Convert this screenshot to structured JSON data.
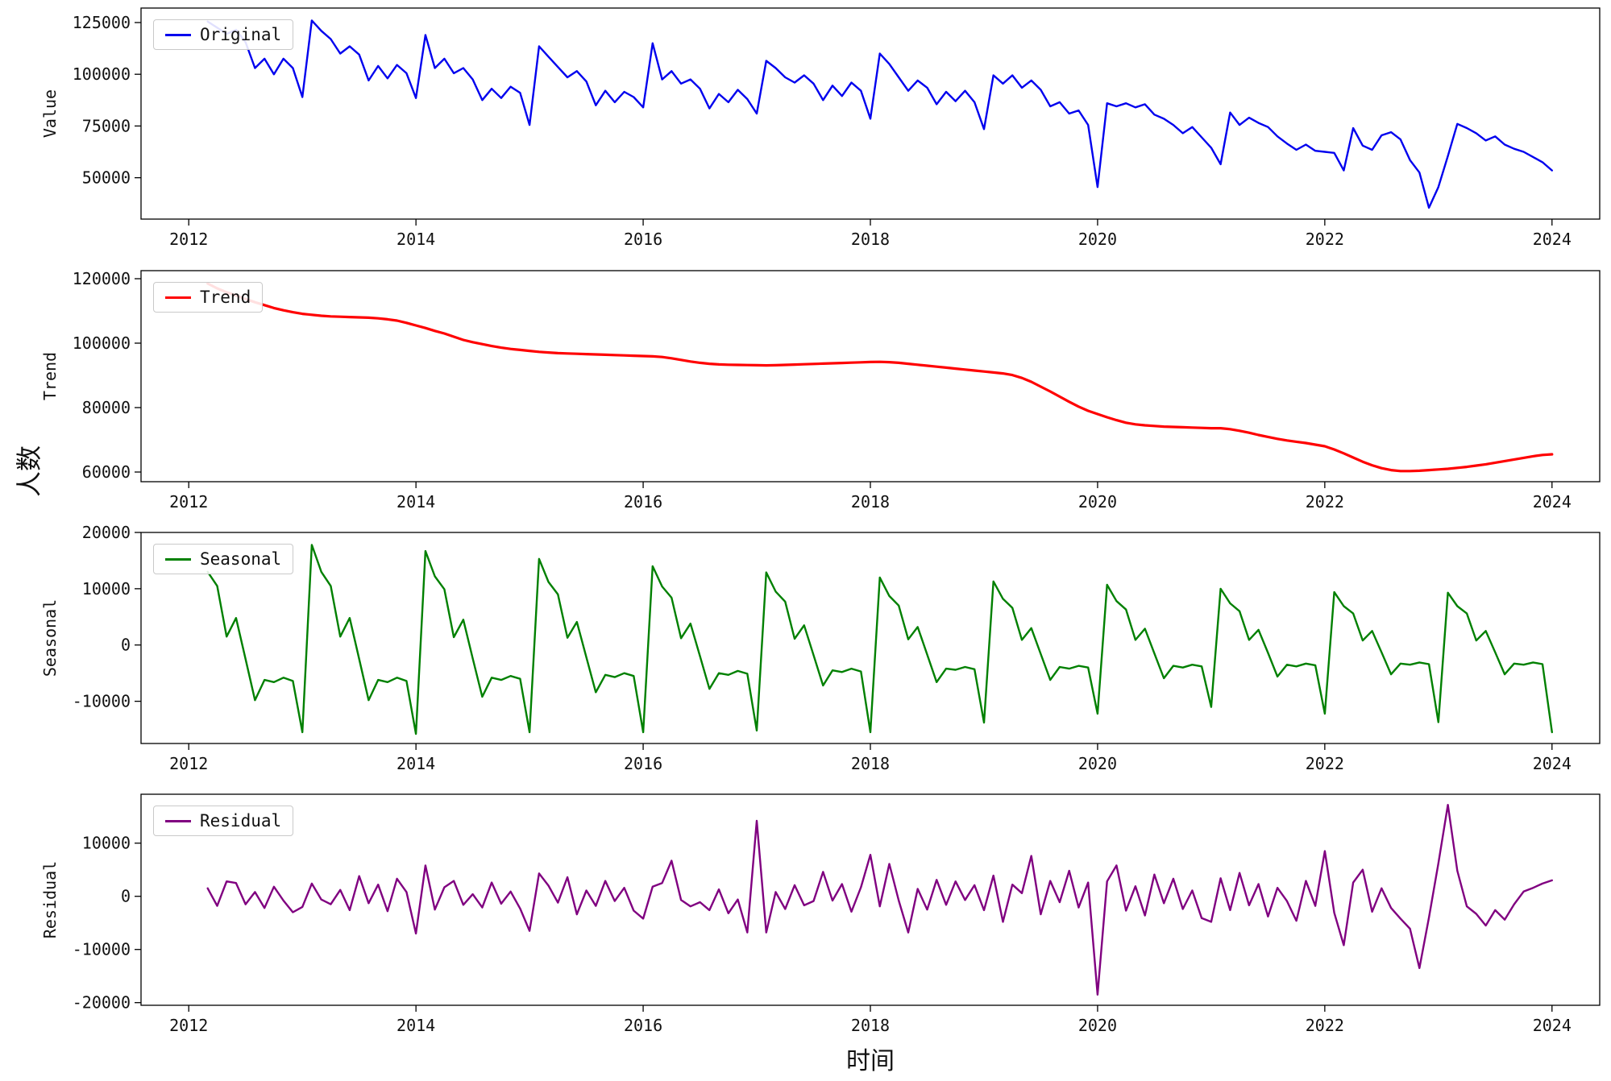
{
  "chart_data": {
    "type": "line",
    "title": "",
    "xlabel": "时间",
    "ylabel_shared": "人数",
    "x_unit": "decimal_year",
    "x_start": 2012.1667,
    "x_step": 0.083333,
    "n_points": 143,
    "x_ticks": [
      2012,
      2014,
      2016,
      2018,
      2020,
      2022,
      2024
    ],
    "xlim": [
      2011.58,
      2024.42
    ],
    "grid": false,
    "legend_position": "upper-left",
    "subplots": [
      {
        "name": "original",
        "legend": "Original",
        "ylabel": "Value",
        "color": "#0000ee",
        "linewidth": 2.4,
        "yticks": [
          50000,
          75000,
          100000,
          125000
        ],
        "ylim": [
          30000,
          132000
        ]
      },
      {
        "name": "trend",
        "legend": "Trend",
        "ylabel": "Trend",
        "color": "#ff0000",
        "linewidth": 3.2,
        "yticks": [
          60000,
          80000,
          100000,
          120000
        ],
        "ylim": [
          57000,
          122500
        ]
      },
      {
        "name": "seasonal",
        "legend": "Seasonal",
        "ylabel": "Seasonal",
        "color": "#008000",
        "linewidth": 2.4,
        "yticks": [
          -10000,
          0,
          10000,
          20000
        ],
        "ylim": [
          -17500,
          20000
        ]
      },
      {
        "name": "residual",
        "legend": "Residual",
        "ylabel": "Residual",
        "color": "#800080",
        "linewidth": 2.4,
        "yticks": [
          -20000,
          -10000,
          0,
          10000
        ],
        "ylim": [
          -20500,
          19200
        ]
      }
    ],
    "series": {
      "original": [
        125500,
        122500,
        119500,
        121500,
        115500,
        103000,
        107500,
        100000,
        107500,
        103000,
        89000,
        126000,
        121000,
        117000,
        110000,
        113500,
        109500,
        97000,
        104000,
        98000,
        104500,
        100500,
        88500,
        119000,
        103000,
        107500,
        100500,
        103000,
        97500,
        87500,
        93000,
        88500,
        94000,
        91000,
        75500,
        113500,
        108500,
        103500,
        98500,
        101500,
        96500,
        85000,
        92000,
        86500,
        91500,
        89000,
        84000,
        115000,
        97500,
        101500,
        95500,
        97500,
        93000,
        83500,
        90500,
        86500,
        92500,
        88000,
        81000,
        106500,
        103000,
        98500,
        96000,
        99500,
        95500,
        87500,
        94500,
        89500,
        96000,
        92000,
        78500,
        110000,
        105000,
        98500,
        92000,
        97000,
        93500,
        85500,
        91500,
        87000,
        92000,
        86500,
        73500,
        99500,
        95500,
        99500,
        93500,
        97000,
        92500,
        84500,
        86500,
        81000,
        82500,
        75500,
        45500,
        86000,
        84500,
        86000,
        84000,
        85500,
        80500,
        78500,
        75500,
        71500,
        74500,
        69500,
        64500,
        56500,
        81500,
        75500,
        79000,
        76500,
        74500,
        70000,
        66500,
        63500,
        66000,
        63000,
        62500,
        62000,
        53500,
        74000,
        65500,
        63500,
        70500,
        72000,
        68500,
        58500,
        52500,
        35500,
        45500,
        60500,
        76000,
        74000,
        71500,
        68000,
        70000,
        66000,
        64000,
        62500,
        60000,
        57500,
        53500
      ],
      "trend": [
        118500,
        117000,
        115800,
        114800,
        113700,
        112700,
        111800,
        110900,
        110200,
        109600,
        109100,
        108800,
        108500,
        108300,
        108200,
        108100,
        108000,
        107900,
        107700,
        107400,
        107000,
        106300,
        105500,
        104700,
        103800,
        103000,
        102000,
        101000,
        100300,
        99700,
        99100,
        98600,
        98200,
        97900,
        97600,
        97300,
        97100,
        96900,
        96800,
        96700,
        96600,
        96500,
        96400,
        96300,
        96200,
        96100,
        96000,
        95900,
        95700,
        95300,
        94800,
        94300,
        93900,
        93600,
        93400,
        93300,
        93250,
        93200,
        93150,
        93100,
        93150,
        93250,
        93350,
        93450,
        93550,
        93650,
        93750,
        93850,
        93950,
        94050,
        94150,
        94200,
        94100,
        93900,
        93600,
        93300,
        93000,
        92700,
        92400,
        92100,
        91800,
        91500,
        91200,
        90900,
        90600,
        90100,
        89200,
        88000,
        86500,
        85000,
        83400,
        81800,
        80300,
        79000,
        78000,
        77000,
        76100,
        75300,
        74800,
        74500,
        74300,
        74100,
        74000,
        73900,
        73800,
        73700,
        73600,
        73600,
        73300,
        72800,
        72200,
        71500,
        70900,
        70300,
        69800,
        69400,
        69000,
        68500,
        68000,
        67000,
        65800,
        64500,
        63200,
        62100,
        61200,
        60600,
        60300,
        60300,
        60400,
        60600,
        60800,
        61000,
        61300,
        61600,
        62000,
        62400,
        62900,
        63400,
        63900,
        64400,
        64900,
        65300,
        65500
      ],
      "seasonal": [
        13000,
        10500,
        1500,
        4800,
        -2500,
        -9800,
        -6200,
        -6600,
        -5800,
        -6400,
        -15500,
        17800,
        13000,
        10500,
        1500,
        4800,
        -2500,
        -9800,
        -6200,
        -6600,
        -5800,
        -6400,
        -15800,
        16700,
        12200,
        9900,
        1400,
        4500,
        -2400,
        -9200,
        -5800,
        -6200,
        -5500,
        -6000,
        -15500,
        15300,
        11200,
        9000,
        1300,
        4100,
        -2200,
        -8400,
        -5300,
        -5700,
        -5000,
        -5500,
        -15500,
        14000,
        10400,
        8400,
        1200,
        3800,
        -2000,
        -7800,
        -5000,
        -5300,
        -4600,
        -5100,
        -15200,
        12900,
        9500,
        7700,
        1100,
        3500,
        -1800,
        -7200,
        -4500,
        -4800,
        -4200,
        -4700,
        -15500,
        12000,
        8700,
        7000,
        1000,
        3200,
        -1700,
        -6600,
        -4200,
        -4400,
        -3900,
        -4300,
        -13800,
        11300,
        8200,
        6600,
        900,
        3000,
        -1600,
        -6200,
        -3900,
        -4200,
        -3700,
        -4000,
        -12200,
        10700,
        7800,
        6300,
        900,
        2900,
        -1500,
        -5900,
        -3700,
        -4000,
        -3500,
        -3800,
        -11000,
        10000,
        7400,
        6000,
        900,
        2700,
        -1400,
        -5600,
        -3500,
        -3800,
        -3300,
        -3600,
        -12200,
        9400,
        6900,
        5600,
        800,
        2500,
        -1300,
        -5200,
        -3300,
        -3500,
        -3100,
        -3400,
        -13700,
        9300,
        6900,
        5600,
        800,
        2500,
        -1300,
        -5200,
        -3300,
        -3500,
        -3100,
        -3400,
        -15500
      ],
      "residual": [
        1500,
        -1800,
        2800,
        2500,
        -1500,
        800,
        -2200,
        1800,
        -800,
        -3000,
        -2000,
        2400,
        -600,
        -1500,
        1200,
        -2600,
        3800,
        -1300,
        2200,
        -2800,
        3300,
        800,
        -7000,
        5800,
        -2500,
        1700,
        2900,
        -1600,
        400,
        -2100,
        2600,
        -1400,
        900,
        -2300,
        -6500,
        4300,
        2000,
        -1200,
        3600,
        -3400,
        1100,
        -1800,
        2900,
        -900,
        1600,
        -2700,
        -4200,
        1800,
        2500,
        6700,
        -700,
        -1900,
        -1100,
        -2600,
        1300,
        -3200,
        -600,
        -6800,
        14200,
        -6800,
        800,
        -2400,
        2100,
        -1700,
        -900,
        4600,
        -800,
        2300,
        -2900,
        1700,
        7800,
        -1900,
        6100,
        -800,
        -6800,
        1400,
        -2500,
        3100,
        -1600,
        2800,
        -700,
        2100,
        -2600,
        3900,
        -4800,
        2200,
        600,
        7600,
        -3400,
        2900,
        -1100,
        4800,
        -2100,
        2600,
        -18500,
        2800,
        5800,
        -2700,
        1900,
        -3600,
        4100,
        -1300,
        3300,
        -2400,
        1100,
        -4100,
        -4800,
        3400,
        -2600,
        4400,
        -1700,
        2300,
        -3800,
        1600,
        -900,
        -4600,
        2900,
        -1800,
        8500,
        -3100,
        -9200,
        2600,
        5000,
        -2900,
        1500,
        -2200,
        -4200,
        -6100,
        -13500,
        -4000,
        6200,
        17200,
        4800,
        -1900,
        -3300,
        -5500,
        -2600,
        -4400,
        -1500,
        900,
        1600,
        2400,
        3000
      ]
    }
  }
}
